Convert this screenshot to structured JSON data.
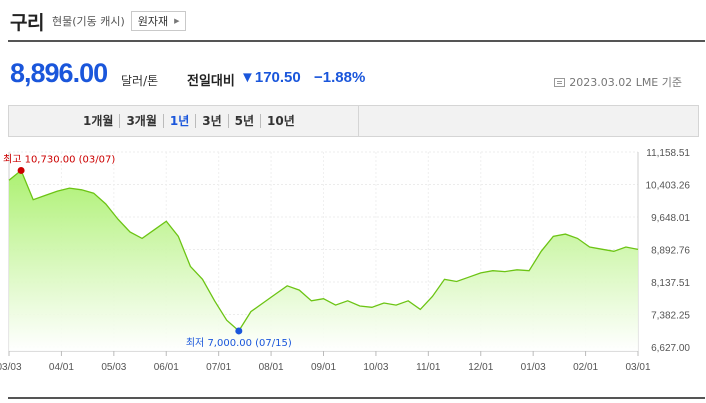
{
  "header": {
    "title": "구리",
    "subtitle": "현물(기동 캐시)",
    "raw_material_button": "원자재"
  },
  "quote": {
    "price": "8,896.00",
    "unit": "달러/톤",
    "change_label": "전일대비",
    "change_value": "▼170.50",
    "change_percent": "−1.88%",
    "date": "2023.03.02",
    "source": "LME 기준"
  },
  "tabs": [
    {
      "label": "1개월",
      "active": false
    },
    {
      "label": "3개월",
      "active": false
    },
    {
      "label": "1년",
      "active": true
    },
    {
      "label": "3년",
      "active": false
    },
    {
      "label": "5년",
      "active": false
    },
    {
      "label": "10년",
      "active": false
    }
  ],
  "colors": {
    "accent": "#1a56db",
    "line": "#6cc414",
    "fill_top": "#a8f06a",
    "high": "#cc0000",
    "low": "#1a56db"
  },
  "chart_data": {
    "type": "area",
    "x": [
      "03/03",
      "03/10",
      "03/17",
      "03/24",
      "03/31",
      "04/07",
      "04/14",
      "04/21",
      "04/28",
      "05/05",
      "05/12",
      "05/19",
      "05/26",
      "06/02",
      "06/09",
      "06/16",
      "06/23",
      "06/30",
      "07/07",
      "07/15",
      "07/22",
      "07/29",
      "08/05",
      "08/12",
      "08/19",
      "08/26",
      "09/02",
      "09/09",
      "09/16",
      "09/23",
      "09/30",
      "10/07",
      "10/14",
      "10/21",
      "10/28",
      "11/04",
      "11/11",
      "11/18",
      "11/25",
      "12/02",
      "12/09",
      "12/16",
      "12/23",
      "12/30",
      "01/06",
      "01/13",
      "01/20",
      "01/27",
      "02/03",
      "02/10",
      "02/17",
      "02/24",
      "03/01"
    ],
    "y": [
      10500,
      10730,
      10050,
      10150,
      10250,
      10320,
      10280,
      10200,
      9950,
      9600,
      9300,
      9150,
      9350,
      9550,
      9200,
      8500,
      8200,
      7700,
      7250,
      7000,
      7450,
      7650,
      7850,
      8050,
      7950,
      7700,
      7750,
      7600,
      7700,
      7580,
      7550,
      7650,
      7600,
      7700,
      7500,
      7800,
      8200,
      8150,
      8250,
      8350,
      8400,
      8380,
      8420,
      8400,
      8850,
      9200,
      9250,
      9150,
      8950,
      8900,
      8850,
      8950,
      8896
    ],
    "x_ticks": [
      "03/03",
      "04/01",
      "05/03",
      "06/01",
      "07/01",
      "08/01",
      "09/01",
      "10/03",
      "11/01",
      "12/01",
      "01/03",
      "02/01",
      "03/01"
    ],
    "y_ticks": [
      "11,158.51",
      "10,403.26",
      "9,648.01",
      "8,892.76",
      "8,137.51",
      "7,382.25",
      "6,627.00"
    ],
    "ylim": [
      6627.0,
      11158.51
    ],
    "high": {
      "label": "최고",
      "value": 10730,
      "value_text": "10,730.00",
      "date": "03/07",
      "index": 1
    },
    "low": {
      "label": "최저",
      "value": 7000,
      "value_text": "7,000.00",
      "date": "07/15",
      "index": 19
    },
    "grid": true
  }
}
